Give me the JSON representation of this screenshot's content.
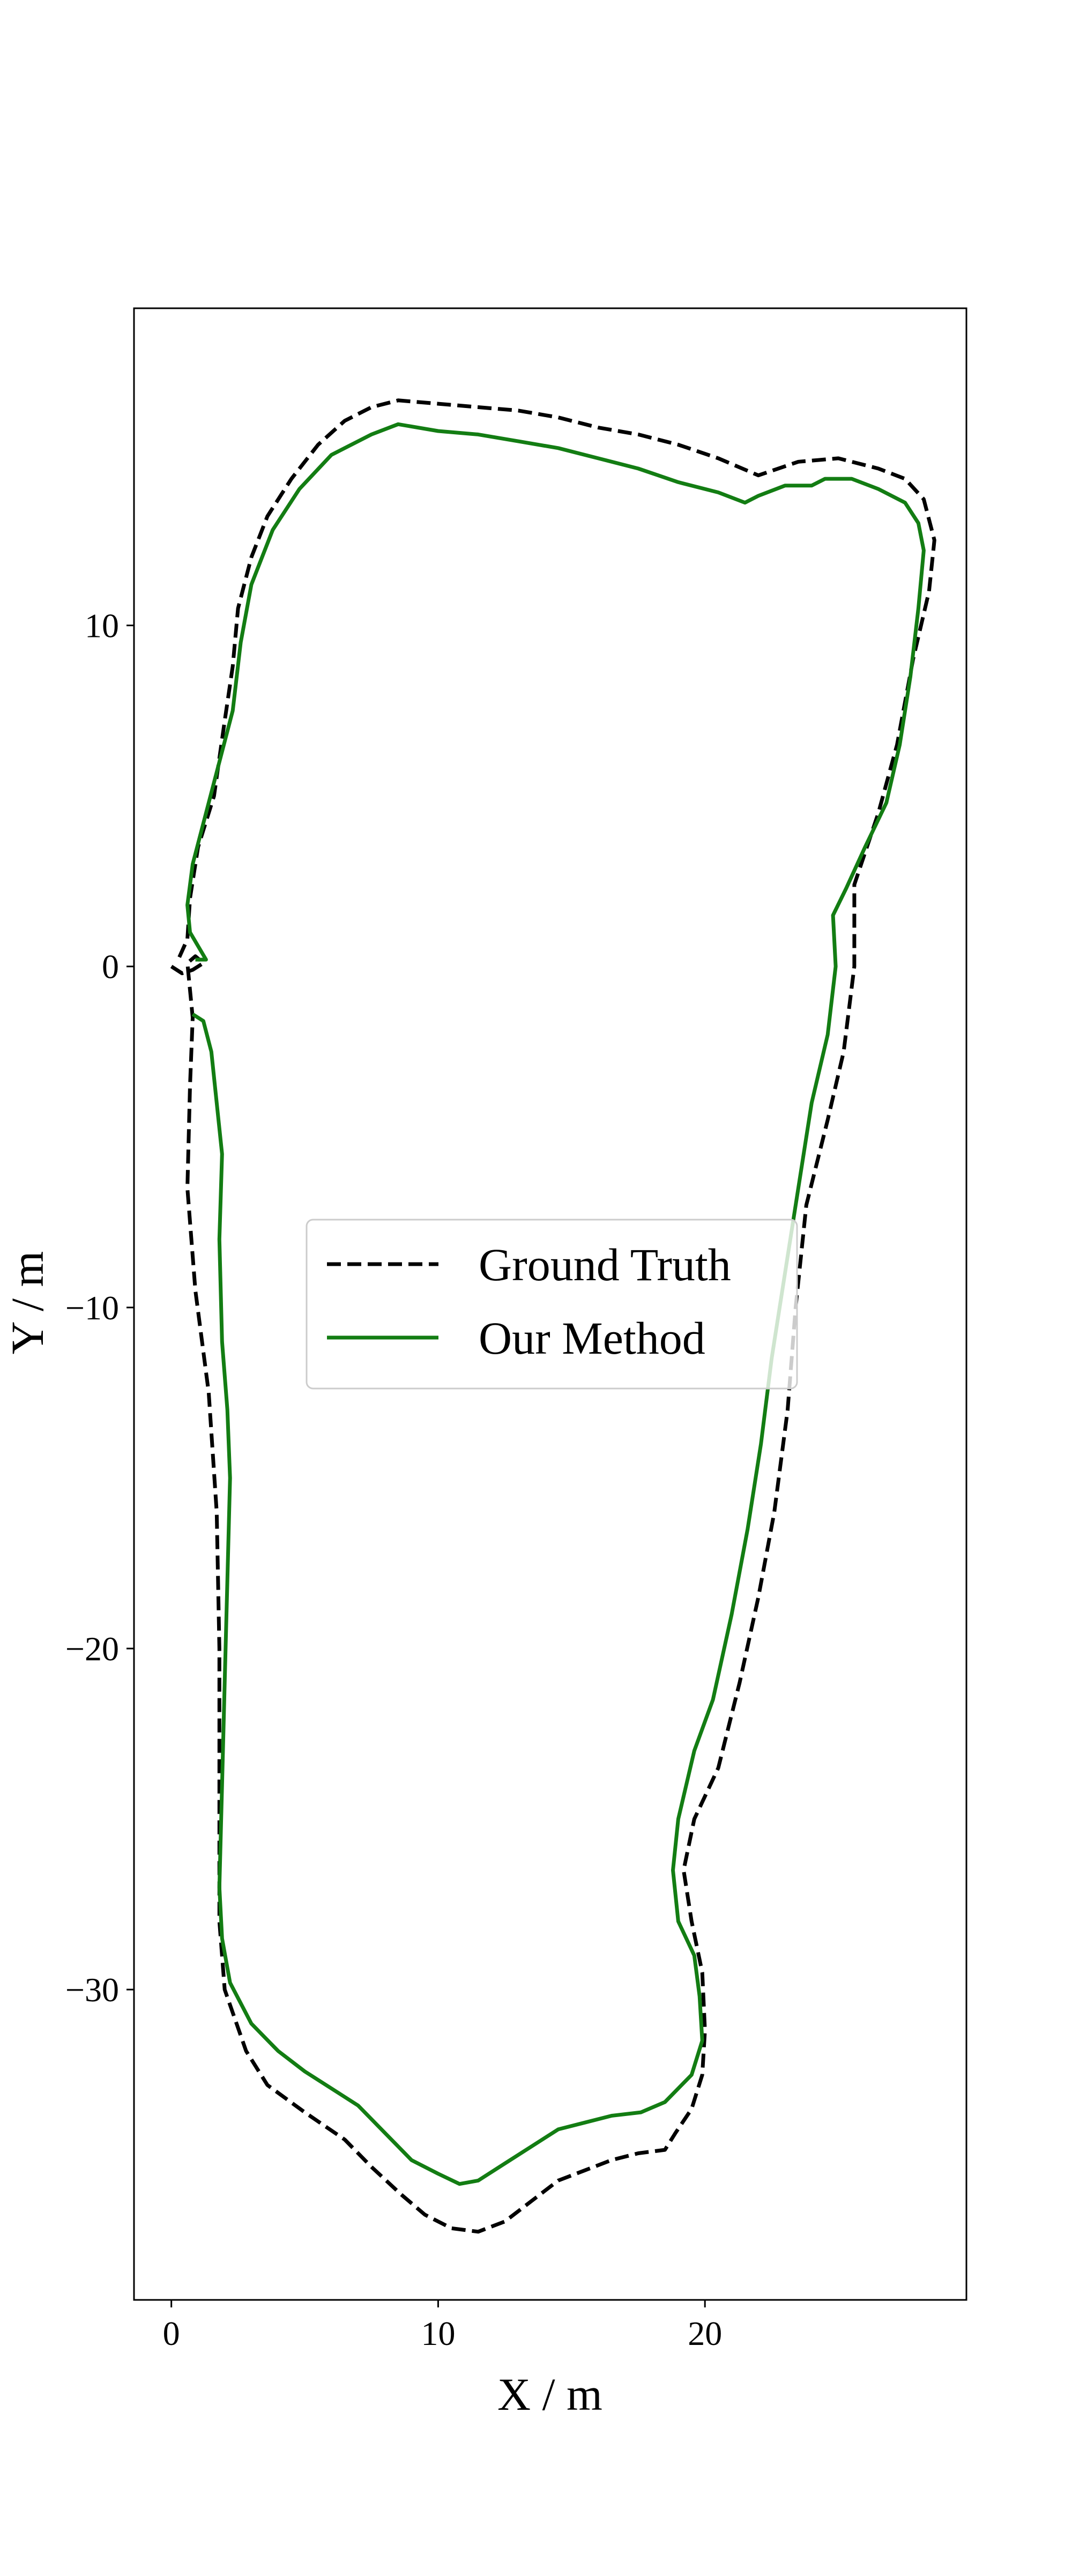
{
  "chart_data": {
    "type": "line",
    "title": "",
    "xlabel": "X / m",
    "ylabel": "Y / m",
    "xlim": [
      -1.4,
      29.8
    ],
    "ylim": [
      -39.1,
      19.3
    ],
    "xticks": [
      0,
      10,
      20
    ],
    "yticks": [
      10,
      0,
      -10,
      -20,
      -30
    ],
    "grid": false,
    "legend": {
      "placement": "center"
    },
    "colors": {
      "ground_truth": "#000000",
      "our_method": "#137d13"
    },
    "series": [
      {
        "name": "Ground Truth",
        "style": "dashed",
        "color": "#000000",
        "points": [
          [
            0.0,
            0.0
          ],
          [
            0.4,
            -0.2
          ],
          [
            0.8,
            -0.1
          ],
          [
            1.2,
            0.1
          ],
          [
            0.9,
            0.3
          ],
          [
            0.6,
            0.1
          ],
          [
            0.8,
            -1.5
          ],
          [
            0.7,
            -3.5
          ],
          [
            0.6,
            -6.5
          ],
          [
            0.9,
            -9.5
          ],
          [
            1.4,
            -12.5
          ],
          [
            1.7,
            -16.0
          ],
          [
            1.8,
            -20.0
          ],
          [
            1.8,
            -24.0
          ],
          [
            1.8,
            -28.0
          ],
          [
            2.0,
            -30.0
          ],
          [
            2.8,
            -31.8
          ],
          [
            3.6,
            -32.8
          ],
          [
            5.0,
            -33.6
          ],
          [
            6.5,
            -34.4
          ],
          [
            7.5,
            -35.2
          ],
          [
            8.6,
            -36.0
          ],
          [
            9.5,
            -36.6
          ],
          [
            10.5,
            -37.0
          ],
          [
            11.5,
            -37.1
          ],
          [
            12.5,
            -36.8
          ],
          [
            13.5,
            -36.2
          ],
          [
            14.5,
            -35.6
          ],
          [
            15.5,
            -35.3
          ],
          [
            16.5,
            -35.0
          ],
          [
            17.5,
            -34.8
          ],
          [
            18.5,
            -34.7
          ],
          [
            18.9,
            -34.2
          ],
          [
            19.5,
            -33.5
          ],
          [
            19.9,
            -32.5
          ],
          [
            20.0,
            -31.2
          ],
          [
            19.9,
            -29.5
          ],
          [
            19.5,
            -28.0
          ],
          [
            19.2,
            -26.5
          ],
          [
            19.6,
            -25.0
          ],
          [
            20.5,
            -23.5
          ],
          [
            21.3,
            -21.0
          ],
          [
            22.0,
            -18.5
          ],
          [
            22.6,
            -16.0
          ],
          [
            23.1,
            -13.0
          ],
          [
            23.4,
            -10.0
          ],
          [
            23.8,
            -7.0
          ],
          [
            24.6,
            -4.5
          ],
          [
            25.2,
            -2.5
          ],
          [
            25.6,
            0.0
          ],
          [
            25.6,
            2.4
          ],
          [
            26.5,
            4.5
          ],
          [
            27.2,
            6.5
          ],
          [
            27.8,
            9.0
          ],
          [
            28.4,
            11.0
          ],
          [
            28.6,
            12.5
          ],
          [
            28.2,
            13.7
          ],
          [
            27.5,
            14.3
          ],
          [
            26.5,
            14.6
          ],
          [
            25.0,
            14.9
          ],
          [
            23.5,
            14.8
          ],
          [
            22.0,
            14.4
          ],
          [
            20.5,
            14.9
          ],
          [
            19.0,
            15.3
          ],
          [
            17.5,
            15.6
          ],
          [
            16.0,
            15.8
          ],
          [
            14.5,
            16.1
          ],
          [
            13.0,
            16.3
          ],
          [
            11.5,
            16.4
          ],
          [
            10.0,
            16.5
          ],
          [
            8.5,
            16.6
          ],
          [
            7.5,
            16.4
          ],
          [
            6.5,
            16.0
          ],
          [
            5.5,
            15.3
          ],
          [
            4.5,
            14.3
          ],
          [
            3.6,
            13.2
          ],
          [
            3.0,
            12.0
          ],
          [
            2.5,
            10.5
          ],
          [
            2.3,
            8.8
          ],
          [
            2.0,
            7.2
          ],
          [
            1.6,
            5.0
          ],
          [
            1.0,
            3.5
          ],
          [
            0.7,
            2.0
          ],
          [
            0.6,
            0.8
          ],
          [
            0.2,
            0.1
          ]
        ]
      },
      {
        "name": "Our Method",
        "style": "solid",
        "color": "#137d13",
        "points": [
          [
            0.9,
            0.2
          ],
          [
            1.3,
            0.2
          ],
          [
            1.0,
            0.6
          ],
          [
            0.7,
            1.0
          ],
          [
            0.6,
            1.8
          ],
          [
            0.8,
            3.0
          ],
          [
            1.3,
            4.5
          ],
          [
            1.8,
            6.0
          ],
          [
            2.3,
            7.5
          ],
          [
            2.6,
            9.5
          ],
          [
            3.0,
            11.2
          ],
          [
            3.8,
            12.8
          ],
          [
            4.8,
            14.0
          ],
          [
            6.0,
            15.0
          ],
          [
            7.5,
            15.6
          ],
          [
            8.5,
            15.9
          ],
          [
            10.0,
            15.7
          ],
          [
            11.5,
            15.6
          ],
          [
            13.0,
            15.4
          ],
          [
            14.5,
            15.2
          ],
          [
            16.0,
            14.9
          ],
          [
            17.5,
            14.6
          ],
          [
            19.0,
            14.2
          ],
          [
            20.5,
            13.9
          ],
          [
            21.5,
            13.6
          ],
          [
            22.0,
            13.8
          ],
          [
            23.0,
            14.1
          ],
          [
            24.0,
            14.1
          ],
          [
            24.5,
            14.3
          ],
          [
            25.5,
            14.3
          ],
          [
            26.5,
            14.0
          ],
          [
            27.5,
            13.6
          ],
          [
            28.0,
            13.0
          ],
          [
            28.2,
            12.2
          ],
          [
            28.0,
            10.5
          ],
          [
            27.7,
            8.5
          ],
          [
            27.3,
            6.5
          ],
          [
            26.8,
            4.8
          ],
          [
            26.0,
            3.5
          ],
          [
            25.3,
            2.3
          ],
          [
            24.8,
            1.5
          ],
          [
            24.9,
            0.0
          ],
          [
            24.6,
            -2.0
          ],
          [
            24.0,
            -4.0
          ],
          [
            23.5,
            -6.5
          ],
          [
            23.0,
            -9.0
          ],
          [
            22.5,
            -11.5
          ],
          [
            22.1,
            -14.0
          ],
          [
            21.6,
            -16.5
          ],
          [
            21.0,
            -19.0
          ],
          [
            20.3,
            -21.5
          ],
          [
            19.6,
            -23.0
          ],
          [
            19.0,
            -25.0
          ],
          [
            18.8,
            -26.5
          ],
          [
            19.0,
            -28.0
          ],
          [
            19.6,
            -29.0
          ],
          [
            19.8,
            -30.2
          ],
          [
            19.9,
            -31.5
          ],
          [
            19.5,
            -32.5
          ],
          [
            18.5,
            -33.3
          ],
          [
            17.6,
            -33.6
          ],
          [
            16.5,
            -33.7
          ],
          [
            15.5,
            -33.9
          ],
          [
            14.5,
            -34.1
          ],
          [
            13.5,
            -34.6
          ],
          [
            12.5,
            -35.1
          ],
          [
            11.5,
            -35.6
          ],
          [
            10.8,
            -35.7
          ],
          [
            10.0,
            -35.4
          ],
          [
            9.0,
            -35.0
          ],
          [
            8.0,
            -34.2
          ],
          [
            7.0,
            -33.4
          ],
          [
            6.0,
            -32.9
          ],
          [
            5.0,
            -32.4
          ],
          [
            4.0,
            -31.8
          ],
          [
            3.0,
            -31.0
          ],
          [
            2.2,
            -29.8
          ],
          [
            1.9,
            -28.5
          ],
          [
            1.8,
            -27.0
          ],
          [
            1.9,
            -24.0
          ],
          [
            2.0,
            -21.0
          ],
          [
            2.1,
            -18.0
          ],
          [
            2.2,
            -15.0
          ],
          [
            2.1,
            -13.0
          ],
          [
            1.9,
            -11.0
          ],
          [
            1.8,
            -8.0
          ],
          [
            1.9,
            -5.5
          ],
          [
            1.7,
            -4.0
          ],
          [
            1.5,
            -2.5
          ],
          [
            1.2,
            -1.6
          ],
          [
            0.8,
            -1.4
          ]
        ]
      }
    ]
  }
}
